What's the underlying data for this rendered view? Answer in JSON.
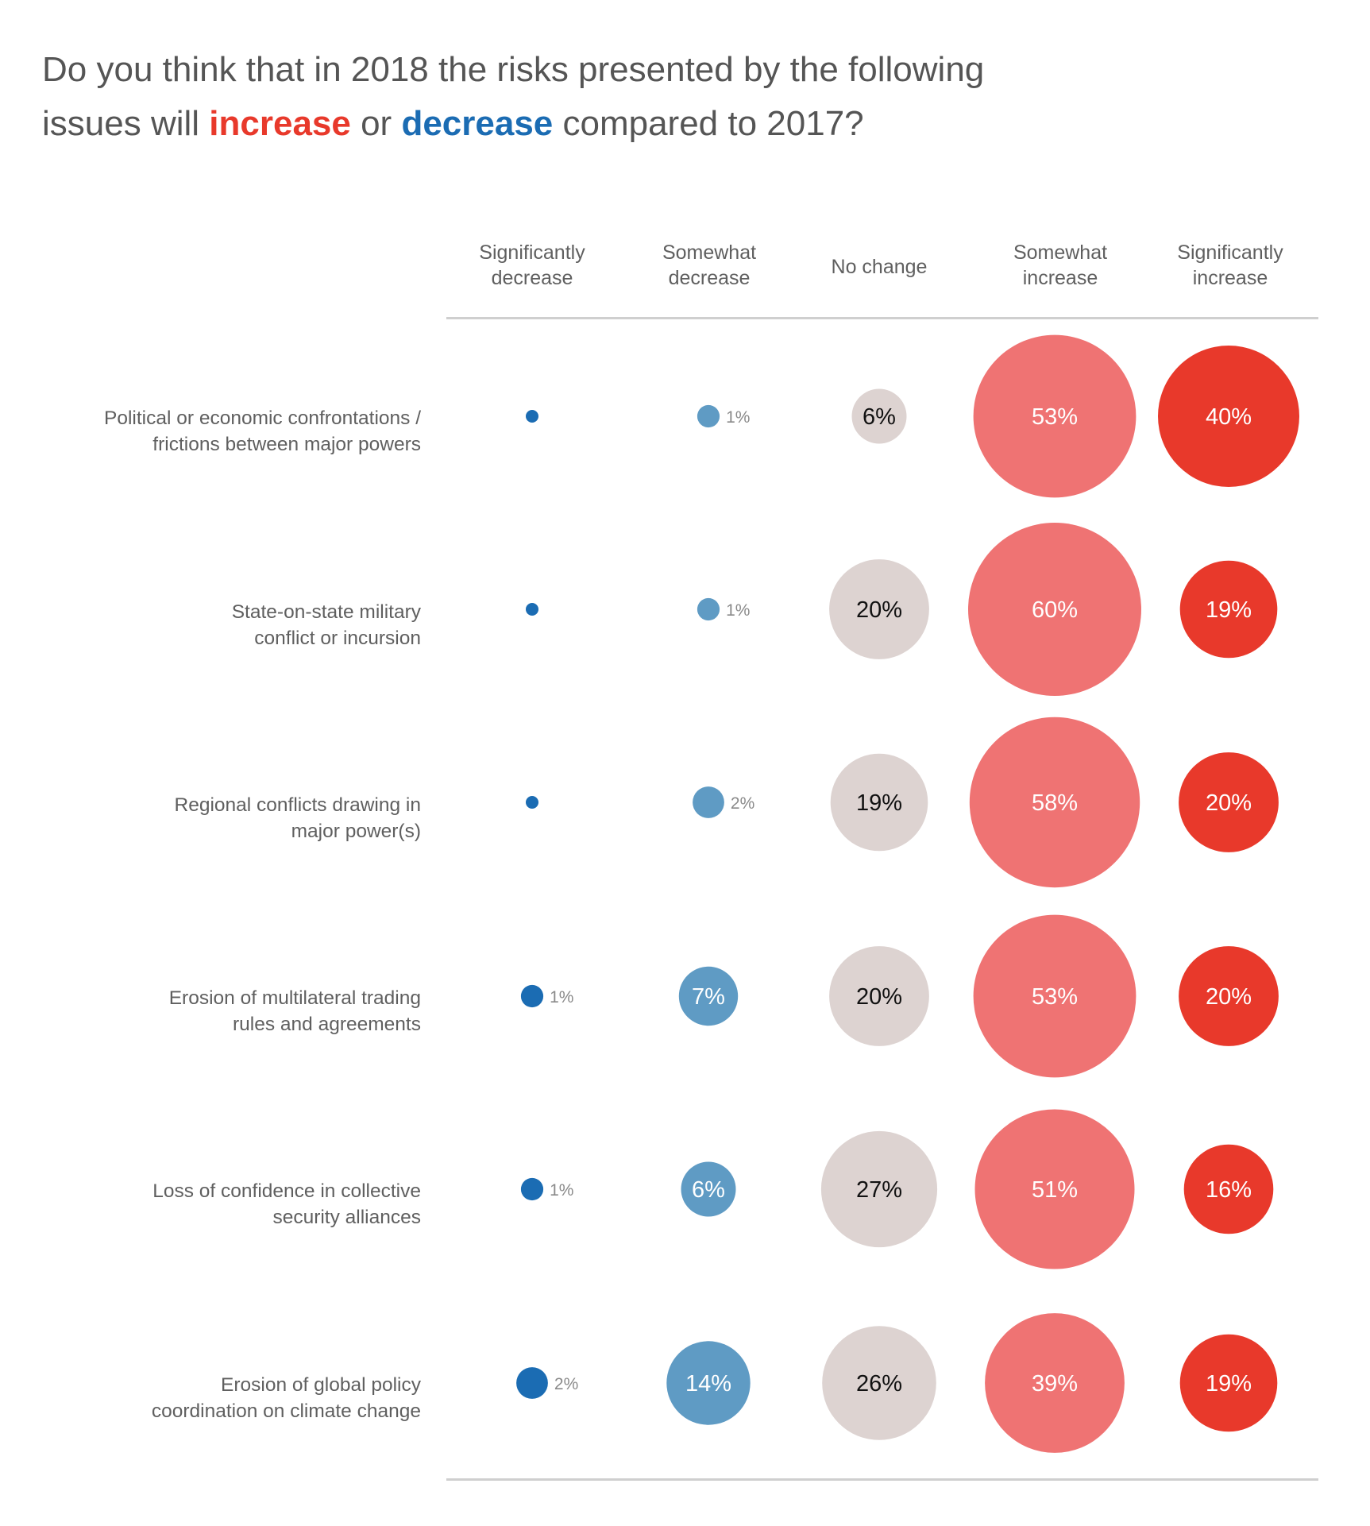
{
  "title": {
    "line1": "Do you think that in 2018 the risks presented by the following",
    "line2_prefix": "issues will ",
    "increase_word": "increase",
    "middle": " or ",
    "decrease_word": "decrease",
    "line2_suffix": " compared to 2017?"
  },
  "colors": {
    "increase_accent": "#e8392b",
    "decrease_accent": "#1b6cb3",
    "significantly_decrease": "#1b6cb3",
    "somewhat_decrease": "#5f9bc4",
    "no_change": "#ddd3d1",
    "somewhat_increase": "#ef7373",
    "significantly_increase": "#e8392b"
  },
  "chart_data": {
    "type": "bubble-matrix",
    "title": "Do you think that in 2018 the risks presented by the following issues will increase or decrease compared to 2017?",
    "columns": [
      {
        "line1": "Significantly",
        "line2": "decrease"
      },
      {
        "line1": "Somewhat",
        "line2": "decrease"
      },
      {
        "line1": "No change",
        "line2": ""
      },
      {
        "line1": "Somewhat",
        "line2": "increase"
      },
      {
        "line1": "Significantly",
        "line2": "increase"
      }
    ],
    "rows": [
      {
        "line1": "Political or economic confrontations /",
        "line2": "frictions between major powers"
      },
      {
        "line1": "State-on-state military",
        "line2": "conflict or incursion"
      },
      {
        "line1": "Regional conflicts drawing in",
        "line2": "major power(s)"
      },
      {
        "line1": "Erosion of multilateral trading",
        "line2": "rules and agreements"
      },
      {
        "line1": "Loss of confidence in collective",
        "line2": "security alliances"
      },
      {
        "line1": "Erosion of global policy",
        "line2": "coordination on climate change"
      }
    ],
    "values": [
      [
        0,
        1,
        6,
        53,
        40
      ],
      [
        0,
        1,
        20,
        60,
        19
      ],
      [
        0,
        2,
        19,
        58,
        20
      ],
      [
        1,
        7,
        20,
        53,
        20
      ],
      [
        1,
        6,
        27,
        51,
        16
      ],
      [
        2,
        14,
        26,
        39,
        19
      ]
    ],
    "labels": [
      [
        "",
        "1%",
        "6%",
        "53%",
        "40%"
      ],
      [
        "",
        "1%",
        "20%",
        "60%",
        "19%"
      ],
      [
        "",
        "2%",
        "19%",
        "58%",
        "20%"
      ],
      [
        "1%",
        "7%",
        "20%",
        "53%",
        "20%"
      ],
      [
        "1%",
        "6%",
        "27%",
        "51%",
        "16%"
      ],
      [
        "2%",
        "14%",
        "26%",
        "39%",
        "19%"
      ]
    ],
    "unit": "%",
    "legend": "none"
  }
}
